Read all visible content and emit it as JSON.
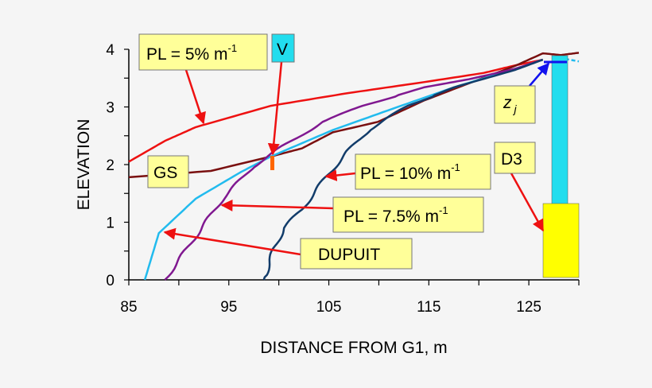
{
  "chart_data": {
    "type": "line",
    "xlabel": "DISTANCE FROM G1, m",
    "ylabel": "ELEVATION",
    "xlim": [
      85,
      130
    ],
    "ylim": [
      0,
      4
    ],
    "x_tick_labels": [
      "85",
      "95",
      "105",
      "115",
      "125"
    ],
    "y_tick_labels": [
      "0",
      "1",
      "2",
      "3",
      "4"
    ],
    "grid": false,
    "series": [
      {
        "name": "PL = 5% m-1",
        "color": "#ee1111",
        "wavy": false,
        "points": [
          [
            85,
            2.05
          ],
          [
            88.6,
            2.41
          ],
          [
            91.7,
            2.65
          ],
          [
            99.2,
            3.02
          ],
          [
            106.9,
            3.24
          ],
          [
            114.5,
            3.43
          ],
          [
            120.5,
            3.59
          ],
          [
            123.6,
            3.72
          ],
          [
            126.4,
            3.82
          ]
        ]
      },
      {
        "name": "GS",
        "color": "#7a1010",
        "wavy": false,
        "points": [
          [
            85,
            1.78
          ],
          [
            93.2,
            1.89
          ],
          [
            99.2,
            2.14
          ],
          [
            102.3,
            2.28
          ],
          [
            105.4,
            2.56
          ],
          [
            109.9,
            2.74
          ],
          [
            114.5,
            3.11
          ],
          [
            119,
            3.41
          ],
          [
            123.6,
            3.71
          ],
          [
            126.4,
            3.93
          ],
          [
            128.2,
            3.9
          ],
          [
            130,
            3.94
          ]
        ]
      },
      {
        "name": "DUPUIT",
        "color": "#22bbee",
        "wavy": false,
        "points": [
          [
            86.6,
            0
          ],
          [
            88,
            0.81
          ],
          [
            91.7,
            1.41
          ],
          [
            96.2,
            1.87
          ],
          [
            99.2,
            2.14
          ],
          [
            105.4,
            2.6
          ],
          [
            111.4,
            2.97
          ],
          [
            117.5,
            3.34
          ],
          [
            123.6,
            3.66
          ],
          [
            126.4,
            3.82
          ]
        ]
      },
      {
        "name": "PL = 7.5% m-1",
        "color": "#801890",
        "wavy": true,
        "points": [
          [
            88.6,
            0
          ],
          [
            91.7,
            0.76
          ],
          [
            94.4,
            1.41
          ],
          [
            97.4,
            1.96
          ],
          [
            100.5,
            2.33
          ],
          [
            104.4,
            2.74
          ],
          [
            108.4,
            3.02
          ],
          [
            114.5,
            3.34
          ],
          [
            119,
            3.48
          ],
          [
            123.6,
            3.66
          ],
          [
            126.4,
            3.82
          ]
        ]
      },
      {
        "name": "PL = 10% m-1",
        "color": "#123c6a",
        "wavy": true,
        "points": [
          [
            98.5,
            0
          ],
          [
            99.5,
            0.53
          ],
          [
            100.5,
            0.9
          ],
          [
            102.3,
            1.22
          ],
          [
            104.7,
            1.78
          ],
          [
            106.9,
            2.23
          ],
          [
            109,
            2.6
          ],
          [
            112.9,
            3.02
          ],
          [
            117.5,
            3.34
          ],
          [
            123.6,
            3.64
          ],
          [
            126.4,
            3.82
          ]
        ]
      }
    ],
    "annotations": {
      "pl5": "PL = 5% m",
      "pl75": "PL = 7.5% m",
      "pl10": "PL = 10% m",
      "exp": "-1",
      "v": "V",
      "gs": "GS",
      "dupuit": "DUPUIT",
      "zj_z": "z",
      "zj_j": "j",
      "d3": "D3"
    },
    "colors": {
      "label_box": "#ffff99",
      "arrow": "#ee1111",
      "well_casing": "#22ddee",
      "well_screen": "#ffff00",
      "zj_marker": "#1111ee",
      "v_marker": "#ff6600"
    }
  }
}
